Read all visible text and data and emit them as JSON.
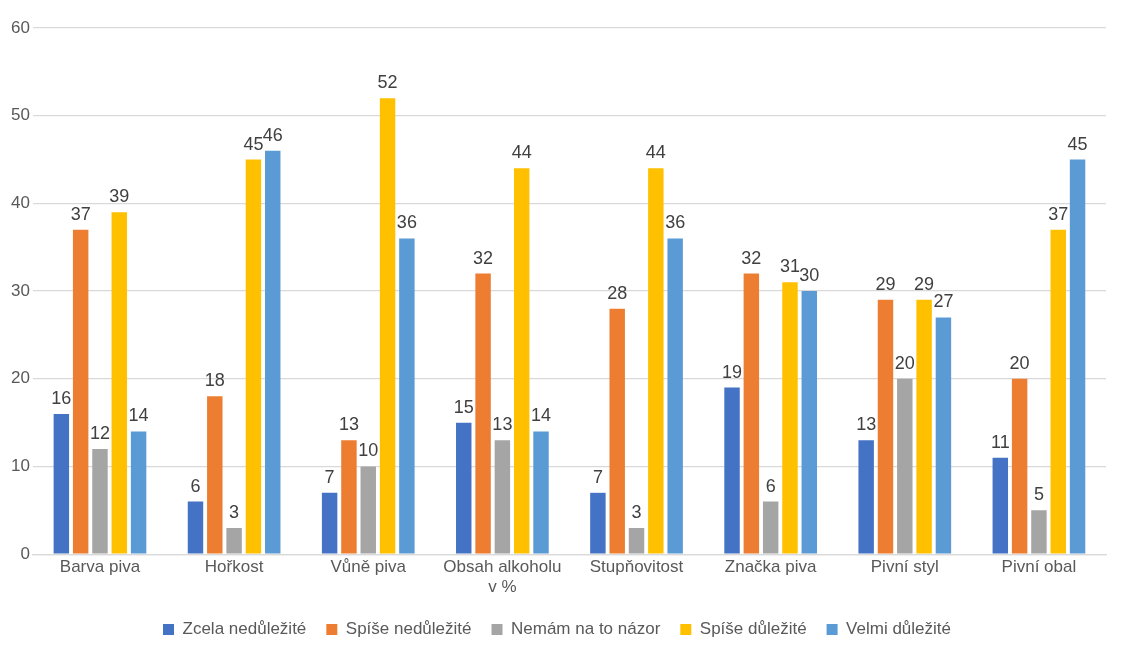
{
  "chart_data": {
    "type": "bar",
    "categories": [
      "Barva piva",
      "Hořkost",
      "Vůně piva",
      "Obsah alkoholu v %",
      "Stupňovitost",
      "Značka piva",
      "Pivní styl",
      "Pivní obal"
    ],
    "series": [
      {
        "name": "Zcela nedůležité",
        "color": "#4472c4",
        "values": [
          16,
          6,
          7,
          15,
          7,
          19,
          13,
          11
        ]
      },
      {
        "name": "Spíše nedůležité",
        "color": "#ed7d31",
        "values": [
          37,
          18,
          13,
          32,
          28,
          32,
          29,
          20
        ]
      },
      {
        "name": "Nemám na to názor",
        "color": "#a5a5a5",
        "values": [
          12,
          3,
          10,
          13,
          3,
          6,
          20,
          5
        ]
      },
      {
        "name": "Spíše důležité",
        "color": "#ffc000",
        "values": [
          39,
          45,
          52,
          44,
          44,
          31,
          29,
          37
        ]
      },
      {
        "name": "Velmi důležité",
        "color": "#5b9bd5",
        "values": [
          14,
          46,
          36,
          14,
          36,
          30,
          27,
          45
        ]
      }
    ],
    "ylim": [
      0,
      60
    ],
    "yticks": [
      0,
      10,
      20,
      30,
      40,
      50,
      60
    ],
    "grid": "y",
    "legend": "bottom",
    "data_labels": true
  }
}
